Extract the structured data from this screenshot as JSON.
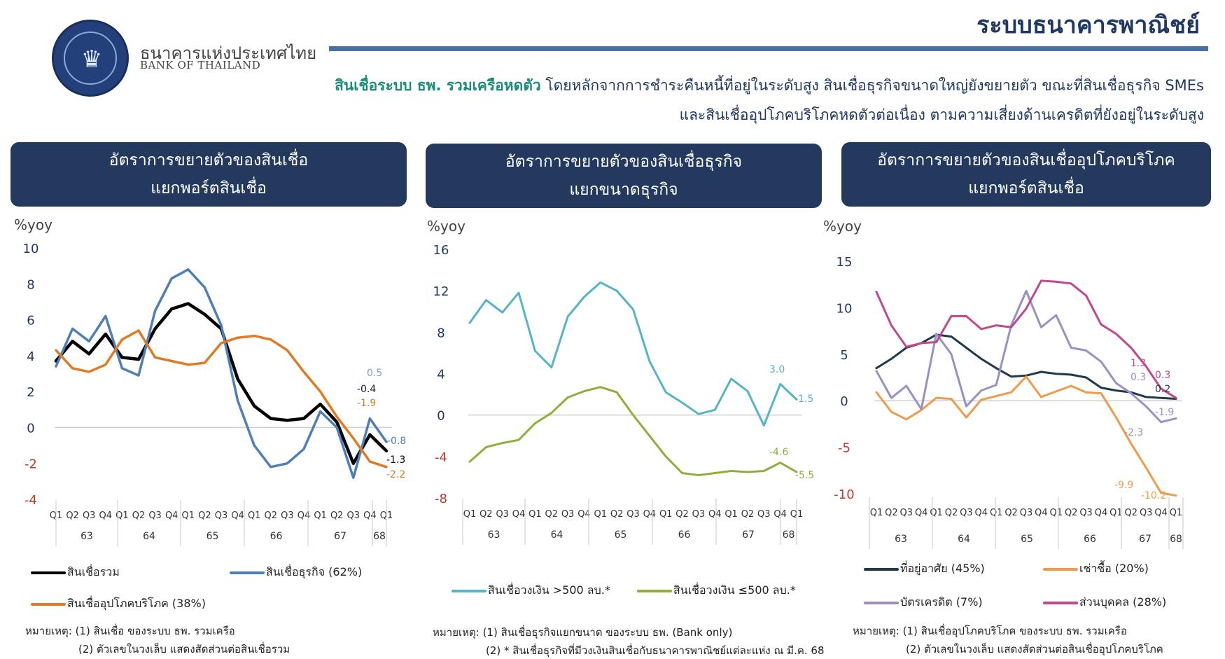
{
  "header": {
    "title": "ระบบธนาคารพาณิชย์",
    "bank_name_th": "ธนาคารแห่งประเทศไทย",
    "bank_name_en": "BANK OF THAILAND",
    "summary_highlight": "สินเชื่อระบบ ธพ. รวมเครือหดตัว",
    "summary_line1_rest": " โดยหลักจากการชำระคืนหนี้ที่อยู่ในระดับสูง สินเชื่อธุรกิจขนาดใหญ่ยังขยายตัว ขณะที่สินเชื่อธุรกิจ SMEs",
    "summary_line2": "และสินเชื่ออุปโภคบริโภคหดตัวต่อเนื่อง ตามความเสี่ยงด้านเครดิตที่ยังอยู่ในระดับสูง"
  },
  "colors": {
    "header_bg": "#24395e",
    "total": "#000000",
    "business": "#4f7fba",
    "consumer": "#e07b24",
    "large": "#56b4c8",
    "sme": "#8fae3c",
    "housing": "#1f3a4d",
    "leasing": "#f19a4b",
    "credit_card": "#9b8fc4",
    "personal": "#c3478e",
    "negative_tick": "#c0392b"
  },
  "quarter_labels": [
    "Q1",
    "Q2",
    "Q3",
    "Q4",
    "Q1",
    "Q2",
    "Q3",
    "Q4",
    "Q1",
    "Q2",
    "Q3",
    "Q4",
    "Q1",
    "Q2",
    "Q3",
    "Q4",
    "Q1",
    "Q2",
    "Q3",
    "Q4",
    "Q1"
  ],
  "year_labels": [
    "63",
    "64",
    "65",
    "66",
    "67",
    "68"
  ],
  "panels": [
    {
      "title_line1": "อัตราการขยายตัวของสินเชื่อ",
      "title_line2": "แยกพอร์ตสินเชื่อ",
      "unit": "%yoy",
      "legend": [
        "สินเชื่อรวม",
        "สินเชื่อธุรกิจ (62%)",
        "สินเชื่ออุปโภคบริโภค (38%)"
      ],
      "notes": [
        "หมายเหตุ: (1) สินเชื่อ ของระบบ ธพ. รวมเครือ",
        "(2) ตัวเลขในวงเล็บ แสดงสัดส่วนต่อสินเชื่อรวม"
      ],
      "end_labels": [
        {
          "text": "0.5",
          "color": "#7b9cc9"
        },
        {
          "text": "-0.4",
          "color": "#222222"
        },
        {
          "text": "-1.9",
          "color": "#e07b24"
        },
        {
          "text": "-0.8",
          "color": "#4f7fba"
        },
        {
          "text": "-1.3",
          "color": "#000000"
        },
        {
          "text": "-2.2",
          "color": "#e07b24"
        }
      ]
    },
    {
      "title_line1": "อัตราการขยายตัวของสินเชื่อธุรกิจ",
      "title_line2": "แยกขนาดธุรกิจ",
      "unit": "%yoy",
      "legend": [
        "สินเชื่อวงเงิน >500 ลบ.*",
        "สินเชื่อวงเงิน ≤500 ลบ.*"
      ],
      "notes": [
        "หมายเหตุ: (1) สินเชื่อธุรกิจแยกขนาด ของระบบ ธพ. (Bank only)",
        "(2) * สินเชื่อธุรกิจที่มีวงเงินสินเชื่อกับธนาคารพาณิชย์แต่ละแห่ง ณ มี.ค. 68"
      ],
      "end_labels": [
        {
          "text": "3.0",
          "color": "#56b4c8"
        },
        {
          "text": "1.5",
          "color": "#56b4c8"
        },
        {
          "text": "-4.6",
          "color": "#8fae3c"
        },
        {
          "text": "-5.5",
          "color": "#8fae3c"
        }
      ]
    },
    {
      "title_line1": "อัตราการขยายตัวของสินเชื่ออุปโภคบริโภค",
      "title_line2": "แยกพอร์ตสินเชื่อ",
      "unit": "%yoy",
      "legend": [
        "ที่อยู่อาศัย (45%)",
        "เช่าซื้อ (20%)",
        "บัตรเครดิต (7%)",
        "ส่วนบุคคล (28%)"
      ],
      "notes": [
        "หมายเหตุ: (1) สินเชื่ออุปโภคบริโภค ของระบบ ธพ. รวมเครือ",
        "(2) ตัวเลขในวงเล็บ แสดงสัดส่วนต่อสินเชื่ออุปโภคบริโภค"
      ],
      "end_labels": [
        {
          "text": "1.3",
          "color": "#c3478e"
        },
        {
          "text": "0.3",
          "color": "#c3478e"
        },
        {
          "text": "0.3",
          "color": "#9b8fc4"
        },
        {
          "text": "0.2",
          "color": "#1f3a4d"
        },
        {
          "text": "-1.9",
          "color": "#9b8fc4"
        },
        {
          "text": "-2.3",
          "color": "#9b8fc4"
        },
        {
          "text": "-9.9",
          "color": "#f19a4b"
        },
        {
          "text": "-10.2",
          "color": "#f19a4b"
        }
      ]
    }
  ],
  "chart_data": [
    {
      "type": "line",
      "ylabel": "%yoy",
      "ylim": [
        -4,
        10
      ],
      "yticks": [
        -4,
        -2,
        0,
        2,
        4,
        6,
        8,
        10
      ],
      "series": [
        {
          "name": "สินเชื่อรวม",
          "values": [
            3.7,
            4.8,
            4.1,
            5.2,
            3.9,
            3.8,
            5.5,
            6.6,
            6.9,
            6.3,
            5.5,
            2.7,
            1.2,
            0.5,
            0.4,
            0.5,
            1.3,
            0.3,
            -2.0,
            -0.4,
            -1.3
          ]
        },
        {
          "name": "สินเชื่อธุรกิจ (62%)",
          "values": [
            3.4,
            5.5,
            4.8,
            6.2,
            3.3,
            2.9,
            6.5,
            8.3,
            8.8,
            7.8,
            5.7,
            1.5,
            -1.0,
            -2.2,
            -2.0,
            -1.2,
            0.9,
            0.0,
            -2.8,
            0.5,
            -0.8
          ]
        },
        {
          "name": "สินเชื่ออุปโภคบริโภค (38%)",
          "values": [
            4.3,
            3.3,
            3.1,
            3.5,
            4.9,
            5.4,
            3.9,
            3.7,
            3.5,
            3.6,
            4.7,
            5.0,
            5.1,
            4.9,
            4.3,
            3.1,
            2.0,
            0.6,
            -0.6,
            -1.9,
            -2.2
          ]
        }
      ]
    },
    {
      "type": "line",
      "ylabel": "%yoy",
      "ylim": [
        -8,
        16
      ],
      "yticks": [
        -8,
        -4,
        0,
        4,
        8,
        12,
        16
      ],
      "series": [
        {
          "name": "สินเชื่อวงเงิน >500 ลบ.*",
          "values": [
            8.9,
            11.1,
            9.9,
            11.8,
            6.2,
            4.6,
            9.5,
            11.4,
            12.8,
            12.0,
            10.2,
            5.2,
            2.2,
            1.2,
            0.1,
            0.5,
            3.5,
            2.3,
            -1.0,
            3.0,
            1.5
          ]
        },
        {
          "name": "สินเชื่อวงเงิน ≤500 ลบ.*",
          "values": [
            -4.5,
            -3.1,
            -2.7,
            -2.4,
            -0.8,
            0.2,
            1.7,
            2.3,
            2.7,
            2.2,
            0.0,
            -2.0,
            -4.0,
            -5.6,
            -5.8,
            -5.6,
            -5.4,
            -5.5,
            -5.4,
            -4.6,
            -5.5
          ]
        }
      ]
    },
    {
      "type": "line",
      "ylabel": "%yoy",
      "ylim": [
        -10,
        15
      ],
      "yticks": [
        -10,
        -5,
        0,
        5,
        10,
        15
      ],
      "series": [
        {
          "name": "ที่อยู่อาศัย (45%)",
          "values": [
            3.5,
            4.5,
            5.7,
            6.2,
            7.1,
            6.9,
            5.7,
            4.5,
            3.5,
            2.6,
            2.7,
            3.1,
            2.9,
            2.8,
            2.5,
            1.4,
            1.1,
            0.9,
            0.4,
            0.3,
            0.2
          ]
        },
        {
          "name": "เช่าซื้อ (20%)",
          "values": [
            0.9,
            -1.2,
            -2.0,
            -1.0,
            0.3,
            0.2,
            -1.8,
            0.1,
            0.5,
            0.9,
            2.6,
            0.4,
            1.0,
            1.6,
            0.9,
            0.8,
            -1.8,
            -4.6,
            -7.2,
            -9.9,
            -10.2
          ]
        },
        {
          "name": "บัตรเครดิต (7%)",
          "values": [
            3.2,
            0.3,
            1.6,
            -0.9,
            7.2,
            5.0,
            -0.6,
            1.1,
            1.7,
            8.1,
            11.8,
            7.9,
            9.2,
            5.7,
            5.4,
            4.2,
            1.9,
            0.8,
            -0.6,
            -2.3,
            -1.9
          ]
        },
        {
          "name": "ส่วนบุคคล (28%)",
          "values": [
            11.7,
            8.1,
            5.8,
            6.2,
            6.3,
            9.1,
            9.1,
            7.7,
            8.1,
            7.9,
            9.9,
            12.9,
            12.8,
            12.6,
            11.3,
            8.2,
            7.2,
            5.7,
            3.7,
            1.3,
            0.3
          ]
        }
      ]
    }
  ]
}
